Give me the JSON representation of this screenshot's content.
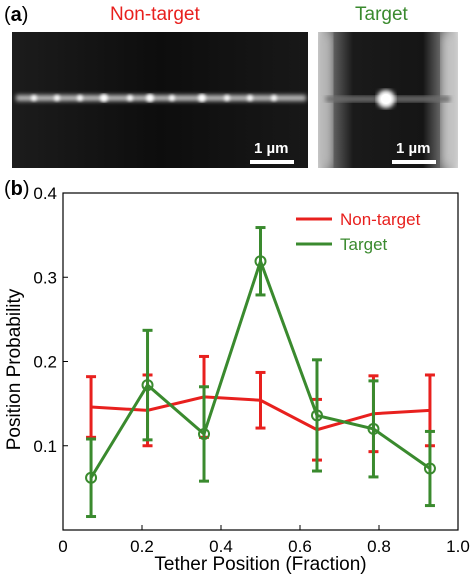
{
  "panel_a": {
    "label_open": "(",
    "label_letter": "a",
    "label_close": ")",
    "nontarget_title": "Non-target",
    "target_title": "Target",
    "scale_nontarget": "1 µm",
    "scale_target": "1 µm"
  },
  "panel_b": {
    "label_open": "(",
    "label_letter": "b",
    "label_close": ")"
  },
  "colors": {
    "nontarget": "#e8201e",
    "target": "#3a8a2e"
  },
  "chart_data": {
    "type": "line",
    "xlabel": "Tether Position (Fraction)",
    "ylabel": "Position Probability",
    "xlim": [
      0,
      1.0
    ],
    "ylim": [
      0,
      0.4
    ],
    "xticks": [
      "0",
      "0.2",
      "0.4",
      "0.6",
      "0.8",
      "1.0"
    ],
    "yticks": [
      "0.1",
      "0.2",
      "0.3",
      "0.4"
    ],
    "xtick_values": [
      0,
      0.2,
      0.4,
      0.6,
      0.8,
      1.0
    ],
    "ytick_values": [
      0.1,
      0.2,
      0.3,
      0.4
    ],
    "legend_placement": "top-right",
    "series": [
      {
        "name": "Non-target",
        "color": "#e8201e",
        "marker": "none",
        "x": [
          0.071,
          0.214,
          0.357,
          0.5,
          0.643,
          0.786,
          0.929
        ],
        "y": [
          0.146,
          0.142,
          0.158,
          0.154,
          0.119,
          0.138,
          0.142
        ],
        "err": [
          0.036,
          0.042,
          0.048,
          0.033,
          0.036,
          0.045,
          0.042
        ]
      },
      {
        "name": "Target",
        "color": "#3a8a2e",
        "marker": "circle",
        "x": [
          0.071,
          0.214,
          0.357,
          0.5,
          0.643,
          0.786,
          0.929
        ],
        "y": [
          0.062,
          0.172,
          0.114,
          0.319,
          0.136,
          0.12,
          0.073
        ],
        "err": [
          0.046,
          0.065,
          0.056,
          0.04,
          0.066,
          0.057,
          0.044
        ]
      }
    ]
  }
}
